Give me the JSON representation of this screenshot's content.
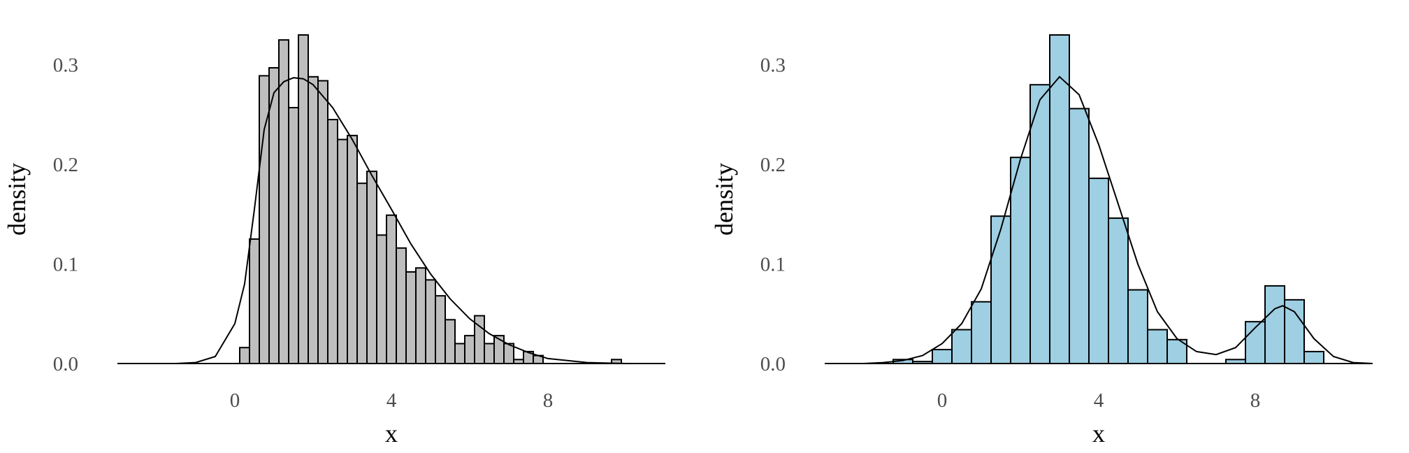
{
  "chart_data": [
    {
      "type": "histogram",
      "xlabel": "x",
      "ylabel": "density",
      "xlim": [
        -3.0,
        11.0
      ],
      "ylim": [
        0,
        0.33
      ],
      "x_ticks": [
        0,
        4,
        8
      ],
      "x_tick_labels": [
        "0",
        "4",
        "8"
      ],
      "y_ticks": [
        0.0,
        0.1,
        0.2,
        0.3
      ],
      "y_tick_labels": [
        "0.0",
        "0.1",
        "0.2",
        "0.3"
      ],
      "grid": false,
      "legend": "none",
      "bar_fill": "#bebebe",
      "bins": {
        "start": 0.125,
        "width": 0.25,
        "density": [
          0.016,
          0.125,
          0.289,
          0.297,
          0.325,
          0.257,
          0.33,
          0.288,
          0.284,
          0.245,
          0.225,
          0.229,
          0.181,
          0.193,
          0.129,
          0.149,
          0.116,
          0.092,
          0.096,
          0.084,
          0.068,
          0.044,
          0.02,
          0.028,
          0.048,
          0.02,
          0.028,
          0.02,
          0.004,
          0.012,
          0.008,
          0.0,
          0.0,
          0.0,
          0.0,
          0.0,
          0.0,
          0.0,
          0.004
        ]
      },
      "density_curve": {
        "x": [
          -2,
          -1.5,
          -1,
          -0.5,
          0,
          0.25,
          0.5,
          0.75,
          1,
          1.25,
          1.5,
          1.75,
          2,
          2.5,
          3,
          3.5,
          4,
          4.5,
          5,
          5.5,
          6,
          6.5,
          7,
          7.5,
          8,
          9,
          10,
          11
        ],
        "y": [
          0.0,
          0.0,
          0.001,
          0.007,
          0.04,
          0.08,
          0.155,
          0.235,
          0.272,
          0.283,
          0.287,
          0.286,
          0.28,
          0.257,
          0.225,
          0.189,
          0.155,
          0.12,
          0.09,
          0.065,
          0.045,
          0.03,
          0.019,
          0.011,
          0.005,
          0.001,
          0.0,
          0.0
        ]
      }
    },
    {
      "type": "histogram",
      "xlabel": "x",
      "ylabel": "density",
      "xlim": [
        -3.0,
        11.0
      ],
      "ylim": [
        0,
        0.33
      ],
      "x_ticks": [
        0,
        4,
        8
      ],
      "x_tick_labels": [
        "0",
        "4",
        "8"
      ],
      "y_ticks": [
        0.0,
        0.1,
        0.2,
        0.3
      ],
      "y_tick_labels": [
        "0.0",
        "0.1",
        "0.2",
        "0.3"
      ],
      "grid": false,
      "legend": "none",
      "bar_fill": "#9ecfe2",
      "bins": {
        "start": -1.25,
        "width": 0.5,
        "density": [
          0.004,
          0.002,
          0.014,
          0.034,
          0.062,
          0.148,
          0.207,
          0.28,
          0.33,
          0.256,
          0.186,
          0.146,
          0.074,
          0.034,
          0.024,
          0.0,
          0.0,
          0.004,
          0.042,
          0.078,
          0.064,
          0.012
        ]
      },
      "density_curve": {
        "x": [
          -2,
          -1.5,
          -1,
          -0.5,
          0,
          0.5,
          1,
          1.5,
          2,
          2.5,
          3,
          3.5,
          4,
          4.5,
          5,
          5.5,
          6,
          6.5,
          7,
          7.5,
          8,
          8.5,
          8.7,
          9,
          9.5,
          10,
          10.5,
          11
        ],
        "y": [
          0.0,
          0.001,
          0.003,
          0.008,
          0.02,
          0.04,
          0.075,
          0.135,
          0.205,
          0.265,
          0.288,
          0.27,
          0.22,
          0.16,
          0.1,
          0.052,
          0.025,
          0.012,
          0.009,
          0.016,
          0.036,
          0.055,
          0.058,
          0.052,
          0.025,
          0.007,
          0.001,
          0.0
        ]
      }
    }
  ]
}
